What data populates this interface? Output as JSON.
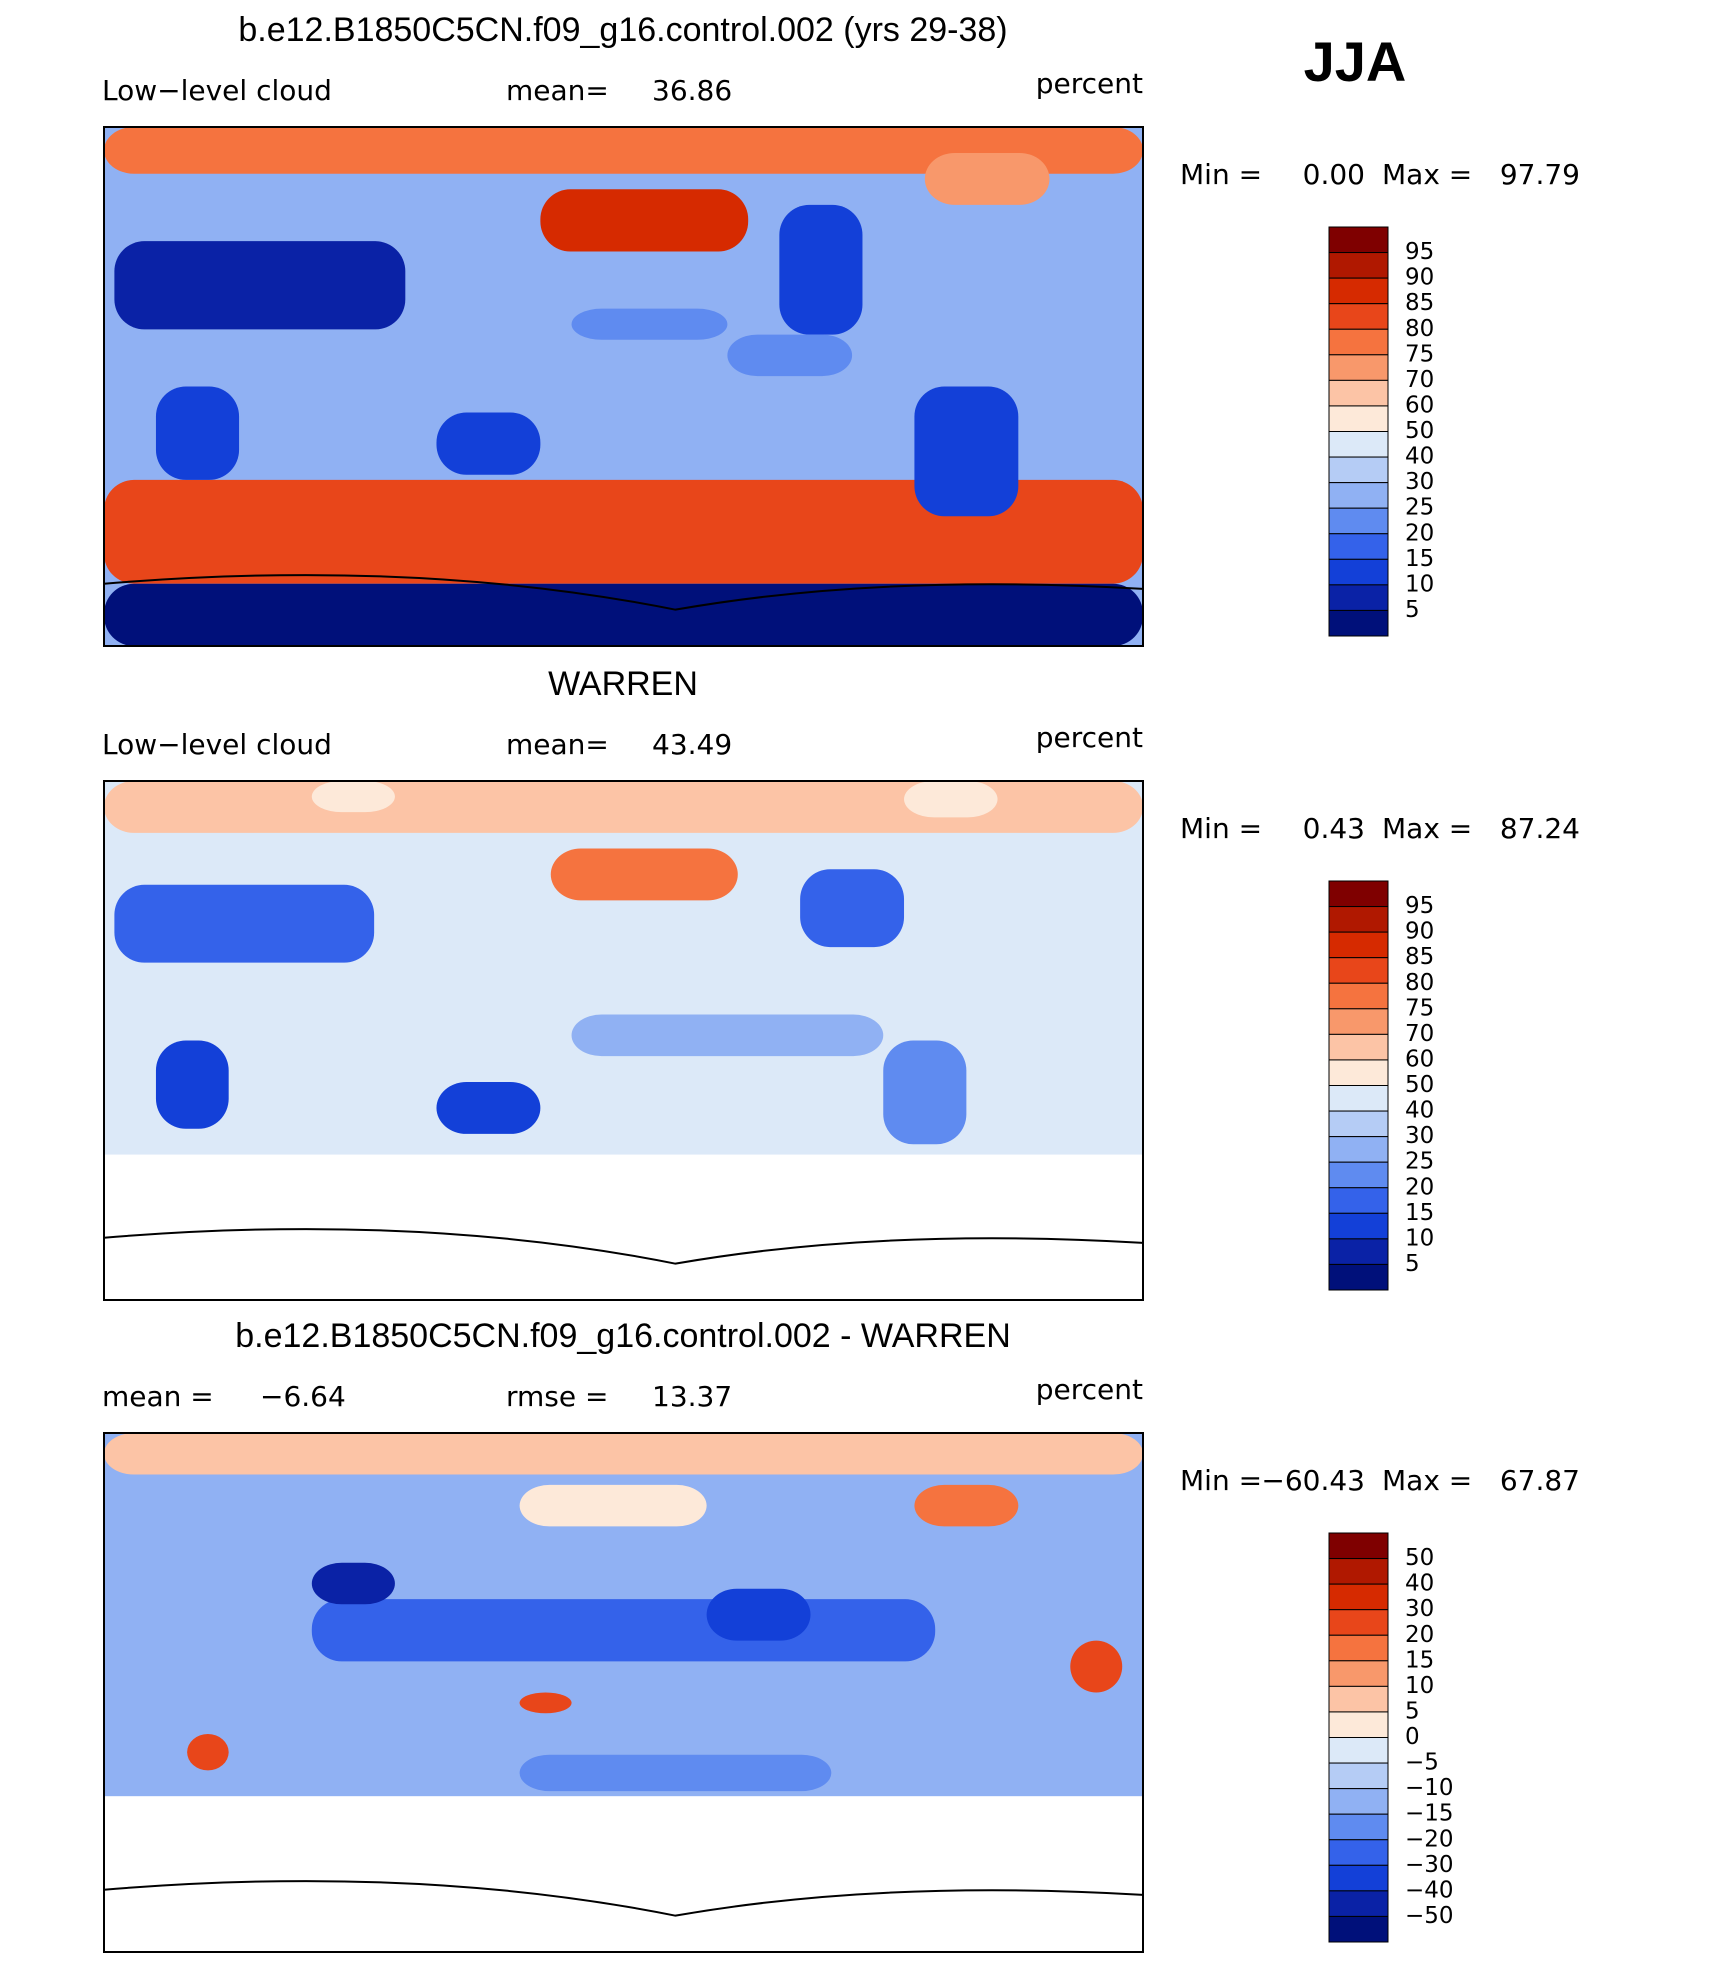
{
  "season": "JJA",
  "colorbar_colors": [
    "#7f0000",
    "#b01800",
    "#d62a00",
    "#e8461a",
    "#f5733f",
    "#f8986b",
    "#fcc4a6",
    "#fde9d9",
    "#dce9f8",
    "#b5ccf5",
    "#90b1f3",
    "#5f8bf0",
    "#3462ea",
    "#1340d8",
    "#0a22a6",
    "#00107a"
  ],
  "panels": [
    {
      "title": "b.e12.B1850C5CN.f09_g16.control.002 (yrs 29-38)",
      "left_label": "Low−level cloud",
      "center_label": "mean=",
      "center_value": "36.86",
      "right_label": "percent",
      "min_label": "Min =",
      "min": "0.00",
      "max_label": "Max =",
      "max": "97.79",
      "colorbar_labels": [
        "95",
        "90",
        "85",
        "80",
        "75",
        "70",
        "60",
        "50",
        "40",
        "30",
        "25",
        "20",
        "15",
        "10",
        "5"
      ]
    },
    {
      "title": "WARREN",
      "left_label": "Low−level cloud",
      "center_label": "mean=",
      "center_value": "43.49",
      "right_label": "percent",
      "min_label": "Min =",
      "min": "0.43",
      "max_label": "Max =",
      "max": "87.24",
      "colorbar_labels": [
        "95",
        "90",
        "85",
        "80",
        "75",
        "70",
        "60",
        "50",
        "40",
        "30",
        "25",
        "20",
        "15",
        "10",
        "5"
      ]
    },
    {
      "title": "b.e12.B1850C5CN.f09_g16.control.002 - WARREN",
      "left_label": "mean  =",
      "left_value": "−6.64",
      "center_label": "rmse  =",
      "center_value": "13.37",
      "right_label": "percent",
      "min_label": "Min =",
      "min": "−60.43",
      "max_label": "Max =",
      "max": "67.87",
      "colorbar_labels": [
        "50",
        "40",
        "30",
        "20",
        "15",
        "10",
        "5",
        "0",
        "−5",
        "−10",
        "−15",
        "−20",
        "−30",
        "−40",
        "−50"
      ]
    }
  ]
}
